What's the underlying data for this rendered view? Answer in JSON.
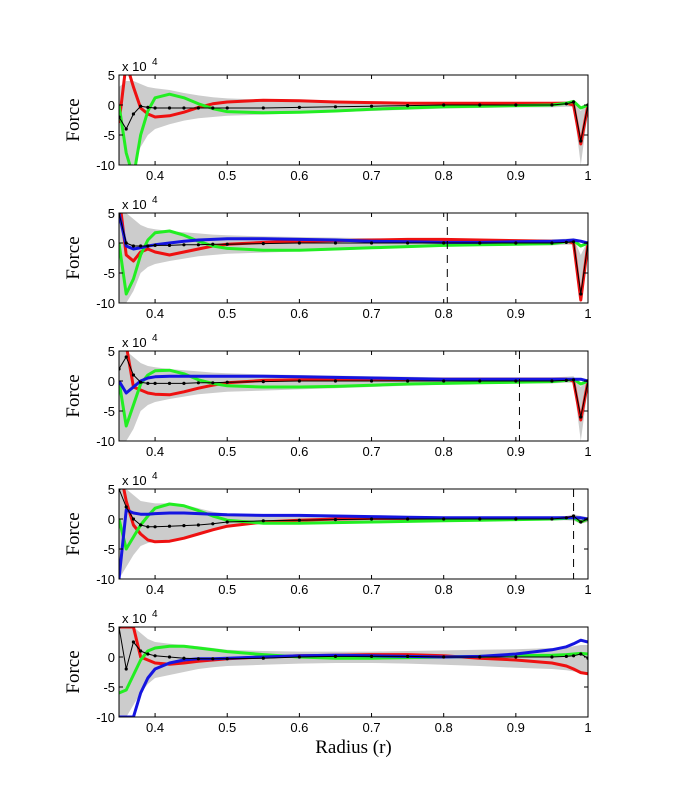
{
  "chart_data": [
    {
      "type": "line",
      "ylabel": "Force",
      "multiplier": "x 10",
      "multiplier_exp": "4",
      "x": [
        0.35,
        0.36,
        0.37,
        0.38,
        0.39,
        0.4,
        0.42,
        0.44,
        0.46,
        0.48,
        0.5,
        0.55,
        0.6,
        0.65,
        0.7,
        0.75,
        0.8,
        0.85,
        0.9,
        0.95,
        0.97,
        0.98,
        0.99,
        1
      ],
      "xlim": [
        0.35,
        1
      ],
      "xticks": [
        0.4,
        0.5,
        0.6,
        0.7,
        0.8,
        0.9,
        1
      ],
      "ylim": [
        -10,
        5
      ],
      "yticks": [
        -10,
        -5,
        0,
        5
      ],
      "band": {
        "color": "#cccccc",
        "upper": [
          3,
          4,
          4,
          3.5,
          3,
          2.8,
          2.5,
          2,
          1.6,
          1.3,
          1.1,
          0.9,
          0.8,
          0.7,
          0.6,
          0.5,
          0.5,
          0.5,
          0.5,
          0.5,
          0.6,
          0.8,
          -1,
          0.5
        ],
        "lower": [
          -10,
          -10,
          -10,
          -7,
          -5,
          -4,
          -3.2,
          -2.6,
          -2.2,
          -2,
          -1.8,
          -1.6,
          -1.4,
          -1.2,
          -1,
          -0.8,
          -0.6,
          -0.5,
          -0.4,
          -0.4,
          -0.3,
          -0.3,
          -10,
          -1
        ]
      },
      "series": [
        {
          "color": "#ee1111",
          "values": [
            -3,
            7,
            3,
            -0.5,
            -1.5,
            -2,
            -1.8,
            -1.2,
            -0.4,
            0.2,
            0.5,
            0.8,
            0.7,
            0.5,
            0.4,
            0.3,
            0.3,
            0.3,
            0.3,
            0.3,
            0.3,
            0,
            -6.5,
            0
          ]
        },
        {
          "color": "#22ee22",
          "values": [
            0,
            -8,
            -12,
            -5,
            -1,
            1.2,
            1.8,
            1.2,
            0.2,
            -0.6,
            -1.1,
            -1.3,
            -1.2,
            -1,
            -0.7,
            -0.5,
            -0.3,
            -0.2,
            -0.1,
            0,
            0.3,
            0.6,
            -0.5,
            0
          ]
        },
        {
          "color": "#000000",
          "markers": true,
          "values": [
            -2,
            -4,
            -1.5,
            -0.2,
            -0.4,
            -0.5,
            -0.5,
            -0.5,
            -0.5,
            -0.5,
            -0.5,
            -0.5,
            -0.4,
            -0.3,
            -0.2,
            -0.1,
            0,
            0,
            0,
            0,
            0.2,
            0.5,
            -6,
            0
          ]
        }
      ]
    },
    {
      "type": "line",
      "ylabel": "Force",
      "multiplier": "x 10",
      "multiplier_exp": "4",
      "x": [
        0.35,
        0.36,
        0.37,
        0.38,
        0.39,
        0.4,
        0.42,
        0.44,
        0.46,
        0.48,
        0.5,
        0.55,
        0.6,
        0.65,
        0.7,
        0.75,
        0.8,
        0.85,
        0.9,
        0.95,
        0.97,
        0.98,
        0.99,
        1
      ],
      "xlim": [
        0.35,
        1
      ],
      "xticks": [
        0.4,
        0.5,
        0.6,
        0.7,
        0.8,
        0.9,
        1
      ],
      "ylim": [
        -10,
        5
      ],
      "yticks": [
        -10,
        -5,
        0,
        5
      ],
      "vline": 0.805,
      "band": {
        "color": "#cccccc",
        "upper": [
          5,
          5,
          4,
          3,
          2.5,
          2.3,
          2,
          1.8,
          1.6,
          1.4,
          1.3,
          1.1,
          1,
          0.9,
          0.8,
          0.7,
          0.6,
          0.6,
          0.6,
          0.6,
          0.7,
          0.8,
          -2,
          0.5
        ],
        "lower": [
          -10,
          -10,
          -8,
          -5,
          -4,
          -3.5,
          -3,
          -2.6,
          -2.2,
          -2,
          -1.8,
          -1.6,
          -1.4,
          -1.2,
          -1,
          -0.8,
          -0.6,
          -0.5,
          -0.4,
          -0.4,
          -0.3,
          -0.3,
          -10,
          -1
        ]
      },
      "series": [
        {
          "color": "#ee1111",
          "values": [
            8,
            -2,
            -3,
            -1.5,
            -1,
            -1.5,
            -2,
            -1.5,
            -1,
            -0.5,
            -0.2,
            0.1,
            0.3,
            0.4,
            0.5,
            0.6,
            0.6,
            0.5,
            0.4,
            0.3,
            0.3,
            0,
            -9.5,
            0
          ]
        },
        {
          "color": "#22ee22",
          "values": [
            0,
            -8.5,
            -6,
            -2,
            0.5,
            1.7,
            2,
            1.3,
            0.3,
            -0.5,
            -0.9,
            -1.2,
            -1.2,
            -1,
            -0.8,
            -0.6,
            -0.4,
            -0.3,
            -0.2,
            -0.1,
            0.2,
            0.4,
            -0.5,
            0
          ]
        },
        {
          "color": "#1515e0",
          "values": [
            5,
            -0.5,
            -1,
            -0.8,
            -0.5,
            -0.3,
            0,
            0.3,
            0.5,
            0.6,
            0.7,
            0.7,
            0.6,
            0.5,
            0.3,
            0.2,
            0.1,
            0.1,
            0.2,
            0.3,
            0.4,
            0.5,
            0.3,
            0
          ]
        },
        {
          "color": "#000000",
          "markers": true,
          "values": [
            5,
            0,
            -0.5,
            -0.5,
            -0.5,
            -0.4,
            -0.4,
            -0.3,
            -0.3,
            -0.2,
            -0.2,
            -0.1,
            0,
            0,
            0,
            0,
            0,
            0,
            0,
            0,
            0.1,
            0.2,
            -8.5,
            0
          ]
        }
      ]
    },
    {
      "type": "line",
      "ylabel": "Force",
      "multiplier": "x 10",
      "multiplier_exp": "4",
      "x": [
        0.35,
        0.36,
        0.37,
        0.38,
        0.39,
        0.4,
        0.42,
        0.44,
        0.46,
        0.48,
        0.5,
        0.55,
        0.6,
        0.65,
        0.7,
        0.75,
        0.8,
        0.85,
        0.9,
        0.95,
        0.97,
        0.98,
        0.99,
        1
      ],
      "xlim": [
        0.35,
        1
      ],
      "xticks": [
        0.4,
        0.5,
        0.6,
        0.7,
        0.8,
        0.9,
        1
      ],
      "ylim": [
        -10,
        5
      ],
      "yticks": [
        -10,
        -5,
        0,
        5
      ],
      "vline": 0.905,
      "band": {
        "color": "#cccccc",
        "upper": [
          5,
          5,
          4,
          3,
          2.5,
          2.3,
          2,
          1.8,
          1.6,
          1.4,
          1.3,
          1.1,
          1,
          0.9,
          0.8,
          0.7,
          0.6,
          0.6,
          0.6,
          0.6,
          0.7,
          0.8,
          -1,
          0.5
        ],
        "lower": [
          -10,
          -10,
          -8,
          -5,
          -4,
          -3.5,
          -3,
          -2.6,
          -2.2,
          -2,
          -1.8,
          -1.6,
          -1.4,
          -1.2,
          -1,
          -0.8,
          -0.6,
          -0.5,
          -0.4,
          -0.4,
          -0.3,
          -0.3,
          -10,
          -1
        ]
      },
      "series": [
        {
          "color": "#ee1111",
          "values": [
            9,
            6,
            -1,
            -1.5,
            -2,
            -2.2,
            -2.3,
            -1.8,
            -1.2,
            -0.7,
            -0.3,
            0.1,
            0.2,
            0.3,
            0.3,
            0.3,
            0.3,
            0.3,
            0.3,
            0.3,
            0.3,
            0,
            -6.5,
            0
          ]
        },
        {
          "color": "#22ee22",
          "values": [
            0,
            -7.5,
            -4,
            -0.5,
            1,
            1.7,
            1.8,
            1.2,
            0.2,
            -0.4,
            -0.8,
            -1,
            -1,
            -0.9,
            -0.7,
            -0.5,
            -0.4,
            -0.3,
            -0.2,
            -0.1,
            0.1,
            0.3,
            -0.5,
            0
          ]
        },
        {
          "color": "#1515e0",
          "values": [
            0,
            -2,
            -1,
            0,
            0.5,
            0.7,
            0.8,
            0.8,
            0.8,
            0.8,
            0.8,
            0.8,
            0.7,
            0.6,
            0.5,
            0.4,
            0.3,
            0.3,
            0.3,
            0.3,
            0.3,
            0.3,
            0.3,
            0
          ]
        },
        {
          "color": "#000000",
          "markers": true,
          "values": [
            2,
            4,
            1,
            -0.2,
            -0.4,
            -0.4,
            -0.4,
            -0.4,
            -0.3,
            -0.3,
            -0.2,
            -0.1,
            0,
            0,
            0,
            0,
            0,
            0,
            0,
            0,
            0.1,
            0.2,
            -6,
            0
          ]
        }
      ]
    },
    {
      "type": "line",
      "ylabel": "Force",
      "multiplier": "x 10",
      "multiplier_exp": "4",
      "x": [
        0.35,
        0.36,
        0.37,
        0.38,
        0.39,
        0.4,
        0.42,
        0.44,
        0.46,
        0.48,
        0.5,
        0.55,
        0.6,
        0.65,
        0.7,
        0.75,
        0.8,
        0.85,
        0.9,
        0.95,
        0.97,
        0.98,
        0.99,
        1
      ],
      "xlim": [
        0.35,
        1
      ],
      "xticks": [
        0.4,
        0.5,
        0.6,
        0.7,
        0.8,
        0.9,
        1
      ],
      "ylim": [
        -10,
        5
      ],
      "yticks": [
        -10,
        -5,
        0,
        5
      ],
      "vline": 0.98,
      "band": {
        "color": "#cccccc",
        "upper": [
          5,
          5,
          4,
          3,
          2.8,
          2.6,
          2.6,
          2.4,
          1.8,
          1.2,
          0.9,
          0.7,
          0.6,
          0.5,
          0.4,
          0.4,
          0.4,
          0.4,
          0.4,
          0.4,
          0.5,
          0.8,
          0.5,
          0.3
        ],
        "lower": [
          -10,
          -8,
          -6,
          -4.5,
          -4,
          -3.8,
          -3.7,
          -3.3,
          -2.6,
          -1.9,
          -1.3,
          -0.8,
          -0.7,
          -0.6,
          -0.5,
          -0.4,
          -0.3,
          -0.2,
          -0.2,
          -0.2,
          -0.2,
          -0.3,
          -0.8,
          -0.5
        ]
      },
      "series": [
        {
          "color": "#ee1111",
          "values": [
            9,
            3,
            -1,
            -2.5,
            -3.5,
            -3.8,
            -3.7,
            -3.2,
            -2.5,
            -1.8,
            -1.2,
            -0.5,
            -0.2,
            0,
            0.1,
            0.1,
            0.1,
            0.1,
            0.1,
            0.1,
            0.2,
            0.3,
            -0.5,
            0
          ]
        },
        {
          "color": "#22ee22",
          "values": [
            0,
            -5,
            -3,
            -1,
            0.5,
            1.8,
            2.5,
            2.2,
            1.4,
            0.5,
            -0.2,
            -0.7,
            -0.7,
            -0.6,
            -0.5,
            -0.4,
            -0.3,
            -0.2,
            -0.1,
            0,
            0.1,
            0.2,
            -0.5,
            0
          ]
        },
        {
          "color": "#1515e0",
          "values": [
            -10,
            1.5,
            1,
            0.8,
            0.8,
            0.9,
            1,
            1,
            0.9,
            0.8,
            0.7,
            0.6,
            0.6,
            0.5,
            0.4,
            0.3,
            0.2,
            0.2,
            0.2,
            0.2,
            0.2,
            0.2,
            0.2,
            0
          ]
        },
        {
          "color": "#000000",
          "markers": true,
          "values": [
            5,
            2,
            0,
            -1,
            -1.3,
            -1.3,
            -1.2,
            -1.1,
            -1,
            -0.8,
            -0.5,
            -0.3,
            -0.2,
            -0.1,
            0,
            0,
            0,
            0,
            0,
            0,
            0.2,
            0.5,
            -0.5,
            0
          ]
        }
      ]
    },
    {
      "type": "line",
      "ylabel": "Force",
      "multiplier": "x 10",
      "multiplier_exp": "4",
      "xlabel": "Radius (r)",
      "x": [
        0.35,
        0.36,
        0.37,
        0.38,
        0.39,
        0.4,
        0.42,
        0.44,
        0.46,
        0.48,
        0.5,
        0.55,
        0.6,
        0.65,
        0.7,
        0.75,
        0.8,
        0.85,
        0.9,
        0.95,
        0.97,
        0.98,
        0.99,
        1
      ],
      "xlim": [
        0.35,
        1
      ],
      "xticks": [
        0.4,
        0.5,
        0.6,
        0.7,
        0.8,
        0.9,
        1
      ],
      "ylim": [
        -10,
        5
      ],
      "yticks": [
        -10,
        -5,
        0,
        5
      ],
      "band": {
        "color": "#cccccc",
        "upper": [
          5,
          5,
          5,
          4,
          3,
          2.5,
          2.2,
          2,
          1.8,
          1.5,
          1.2,
          1,
          0.9,
          0.9,
          0.9,
          1,
          1.1,
          1.2,
          1.3,
          1.5,
          1.6,
          1.8,
          2,
          2
        ],
        "lower": [
          -10,
          -10,
          -8,
          -6,
          -4.5,
          -3.5,
          -3,
          -2.5,
          -2,
          -1.7,
          -1.5,
          -1.3,
          -1.1,
          -1,
          -1,
          -1.1,
          -1.3,
          -1.5,
          -1.8,
          -2,
          -2.2,
          -2.4,
          -2.6,
          -2.6
        ]
      },
      "series": [
        {
          "color": "#ee1111",
          "values": [
            5,
            5,
            5,
            0,
            -0.5,
            -1,
            -1.2,
            -1,
            -0.7,
            -0.5,
            -0.3,
            0,
            0.2,
            0.3,
            0.4,
            0.4,
            0.2,
            -0.2,
            -0.5,
            -1,
            -1.5,
            -2,
            -2.6,
            -2.8
          ]
        },
        {
          "color": "#22ee22",
          "values": [
            -6,
            -5.5,
            -3,
            -0.5,
            1,
            1.5,
            1.8,
            1.8,
            1.5,
            1.2,
            0.9,
            0.4,
            0,
            -0.2,
            -0.2,
            -0.1,
            0,
            0.1,
            0.2,
            0.3,
            0.4,
            0.5,
            0.6,
            0.5
          ]
        },
        {
          "color": "#1515e0",
          "values": [
            -10,
            -10,
            -10,
            -6,
            -3.5,
            -2,
            -1,
            -0.5,
            -0.3,
            -0.3,
            -0.2,
            0,
            0.2,
            0.3,
            0.2,
            0.1,
            0,
            0.1,
            0.5,
            1.2,
            1.7,
            2.2,
            2.8,
            2.5
          ]
        },
        {
          "color": "#000000",
          "markers": true,
          "values": [
            5,
            -2,
            2.5,
            1,
            0.5,
            0.2,
            0,
            -0.2,
            -0.3,
            -0.3,
            -0.3,
            -0.2,
            0,
            0.1,
            0.1,
            0.1,
            0,
            0,
            0,
            0,
            0.1,
            0.2,
            0.5,
            -0.2
          ]
        }
      ]
    }
  ]
}
